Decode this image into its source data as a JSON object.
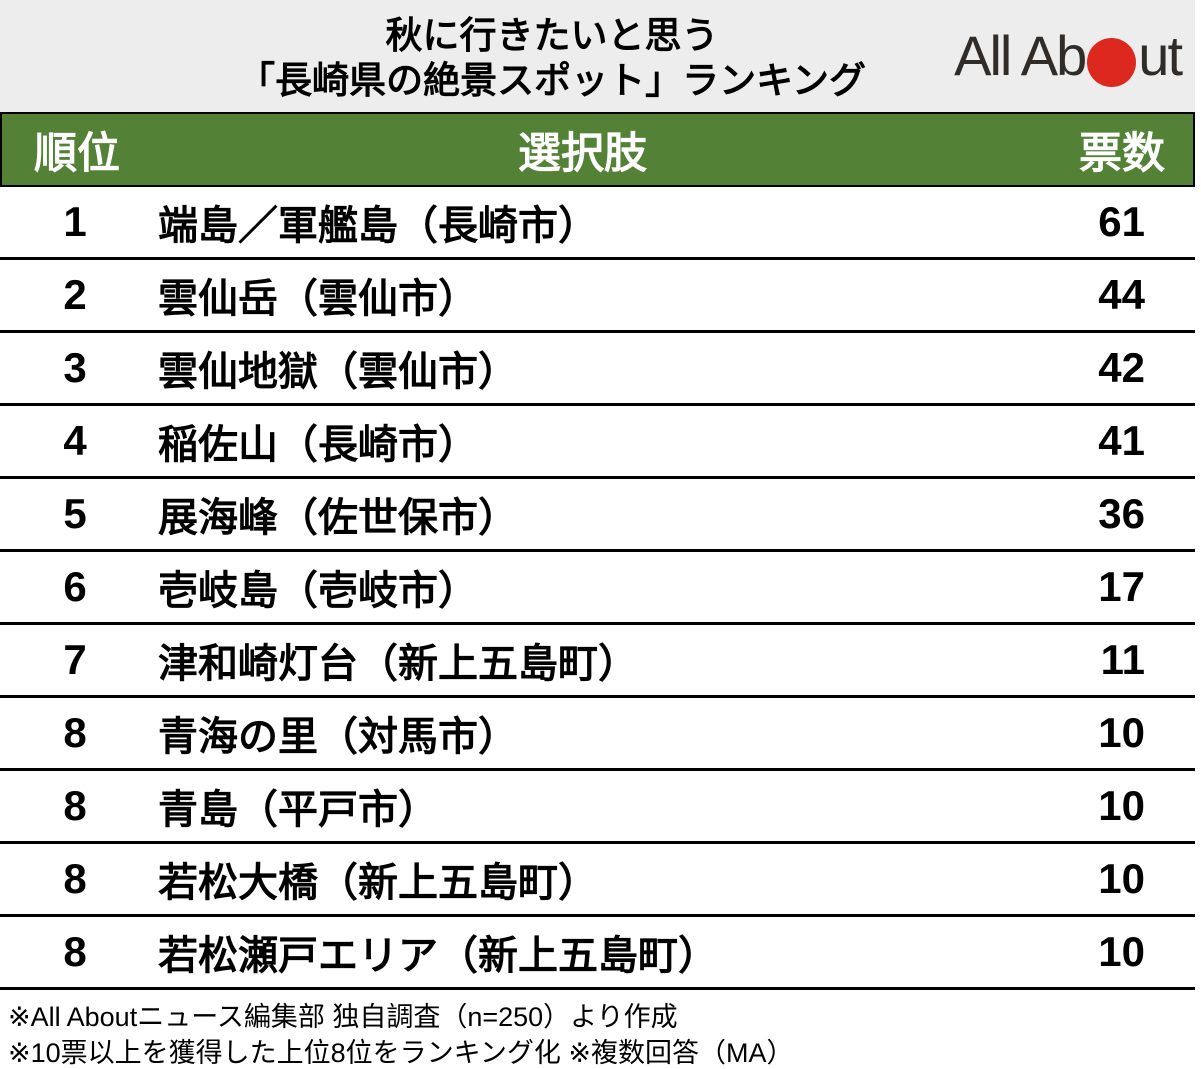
{
  "header": {
    "title_line1": "秋に行きたいと思う",
    "title_line2": "「長崎県の絶景スポット」ランキング",
    "logo": {
      "text_before_circle": "All Ab",
      "text_after_circle": "ut",
      "circle_color": "#dc281e",
      "text_color": "#322c29"
    },
    "band_bg": "#ededed"
  },
  "table": {
    "header_bg": "#538135",
    "columns": {
      "rank": "順位",
      "choice": "選択肢",
      "votes": "票数"
    },
    "rows": [
      {
        "rank": "1",
        "name": "端島／軍艦島（長崎市）",
        "votes": "61"
      },
      {
        "rank": "2",
        "name": "雲仙岳（雲仙市）",
        "votes": "44"
      },
      {
        "rank": "3",
        "name": "雲仙地獄（雲仙市）",
        "votes": "42"
      },
      {
        "rank": "4",
        "name": "稲佐山（長崎市）",
        "votes": "41"
      },
      {
        "rank": "5",
        "name": "展海峰（佐世保市）",
        "votes": "36"
      },
      {
        "rank": "6",
        "name": "壱岐島（壱岐市）",
        "votes": "17"
      },
      {
        "rank": "7",
        "name": "津和崎灯台（新上五島町）",
        "votes": "11"
      },
      {
        "rank": "8",
        "name": "青海の里（対馬市）",
        "votes": "10"
      },
      {
        "rank": "8",
        "name": "青島（平戸市）",
        "votes": "10"
      },
      {
        "rank": "8",
        "name": "若松大橋（新上五島町）",
        "votes": "10"
      },
      {
        "rank": "8",
        "name": "若松瀬戸エリア（新上五島町）",
        "votes": "10"
      }
    ]
  },
  "footnotes": {
    "line1": "※All Aboutニュース編集部 独自調査（n=250）より作成",
    "line2": "※10票以上を獲得した上位8位をランキング化 ※複数回答（MA）"
  },
  "chart_data": {
    "type": "table",
    "title": "秋に行きたいと思う「長崎県の絶景スポット」ランキング",
    "columns": [
      "順位",
      "選択肢",
      "票数"
    ],
    "categories": [
      "端島／軍艦島（長崎市）",
      "雲仙岳（雲仙市）",
      "雲仙地獄（雲仙市）",
      "稲佐山（長崎市）",
      "展海峰（佐世保市）",
      "壱岐島（壱岐市）",
      "津和崎灯台（新上五島町）",
      "青海の里（対馬市）",
      "青島（平戸市）",
      "若松大橋（新上五島町）",
      "若松瀬戸エリア（新上五島町）"
    ],
    "ranks": [
      1,
      2,
      3,
      4,
      5,
      6,
      7,
      8,
      8,
      8,
      8
    ],
    "values": [
      61,
      44,
      42,
      41,
      36,
      17,
      11,
      10,
      10,
      10,
      10
    ],
    "sample_size": "n=250",
    "source": "All Aboutニュース編集部 独自調査"
  }
}
